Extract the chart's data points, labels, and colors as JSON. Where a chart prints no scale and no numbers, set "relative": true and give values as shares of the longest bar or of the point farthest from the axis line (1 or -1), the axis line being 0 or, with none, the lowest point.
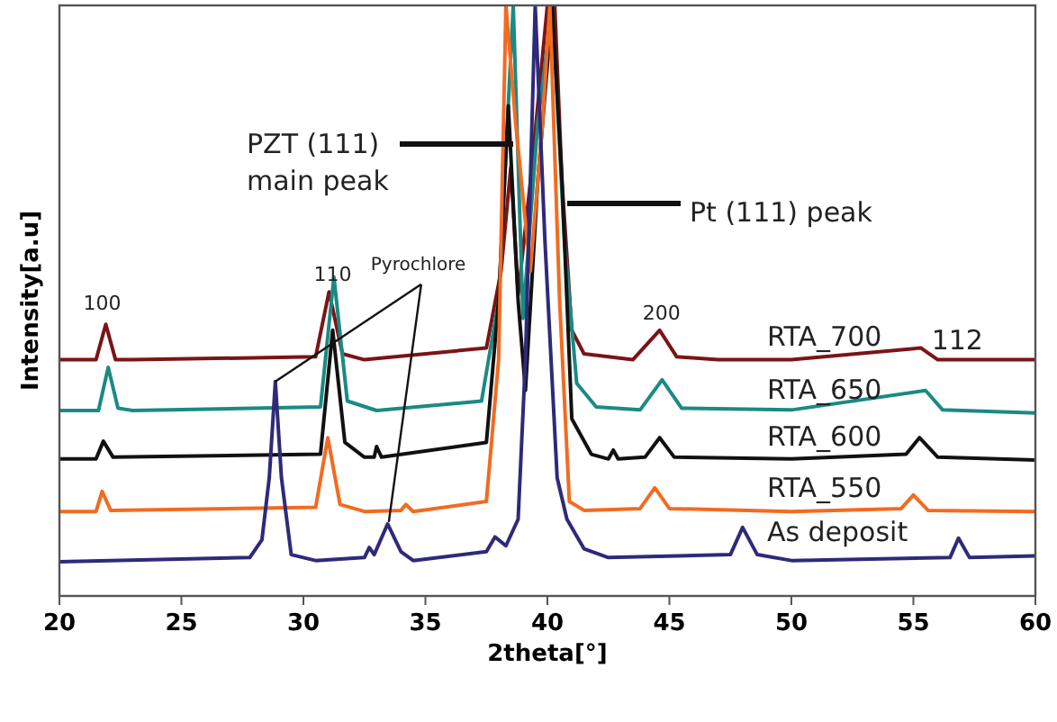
{
  "chart_data": {
    "type": "line",
    "relative": true,
    "xlabel": "2theta[°]",
    "ylabel": "Intensity[a.u]",
    "xlim": [
      20,
      60
    ],
    "xticks": [
      20,
      25,
      30,
      35,
      40,
      45,
      50,
      55,
      60
    ],
    "legend": false,
    "grid": false,
    "marker": "none",
    "line_style": "solid",
    "series": [
      {
        "name": "RTA_700",
        "color": "#7b1416",
        "x": [
          20,
          21.5,
          21.9,
          22.3,
          23,
          30.5,
          31.05,
          31.6,
          32.5,
          37.5,
          38.1,
          38.5,
          38.8,
          39.3,
          40.0,
          40.3,
          40.6,
          41,
          41.5,
          43.5,
          44.6,
          45.3,
          47,
          50,
          55.3,
          56,
          60
        ],
        "values": [
          0.4,
          0.4,
          0.46,
          0.4,
          0.4,
          0.405,
          0.515,
          0.41,
          0.4,
          0.42,
          0.55,
          0.726,
          0.51,
          0.7,
          1,
          1,
          0.7,
          0.45,
          0.41,
          0.4,
          0.45,
          0.405,
          0.4,
          0.4,
          0.42,
          0.4,
          0.4
        ]
      },
      {
        "name": "RTA_650",
        "color": "#1a8a85",
        "x": [
          20,
          21.6,
          22.0,
          22.4,
          23,
          30.7,
          31.25,
          31.8,
          33,
          37.3,
          38.0,
          38.6,
          39.0,
          39.6,
          40.2,
          40.7,
          41.2,
          42,
          43.8,
          44.7,
          45.5,
          50,
          55.5,
          56.2,
          60
        ],
        "values": [
          0.314,
          0.314,
          0.387,
          0.318,
          0.314,
          0.32,
          0.54,
          0.33,
          0.314,
          0.33,
          0.5,
          1,
          0.47,
          0.8,
          1,
          0.6,
          0.36,
          0.32,
          0.315,
          0.366,
          0.318,
          0.315,
          0.348,
          0.315,
          0.31
        ]
      },
      {
        "name": "RTA_600",
        "color": "#111111",
        "x": [
          20,
          21.5,
          21.8,
          22.2,
          30.7,
          31.2,
          31.7,
          32.5,
          32.9,
          33.0,
          33.2,
          37.5,
          38.0,
          38.4,
          38.8,
          39.1,
          39.6,
          40.2,
          40.6,
          41.0,
          41.8,
          42.5,
          42.7,
          42.9,
          44.0,
          44.6,
          45.2,
          50,
          54.7,
          55.25,
          56,
          60
        ],
        "values": [
          0.232,
          0.232,
          0.262,
          0.235,
          0.24,
          0.45,
          0.26,
          0.235,
          0.235,
          0.253,
          0.235,
          0.26,
          0.5,
          0.83,
          0.5,
          0.348,
          0.7,
          1,
          0.7,
          0.3,
          0.24,
          0.232,
          0.247,
          0.232,
          0.235,
          0.268,
          0.235,
          0.232,
          0.24,
          0.268,
          0.235,
          0.23
        ]
      },
      {
        "name": "RTA_550",
        "color": "#f26b21",
        "x": [
          20,
          21.5,
          21.75,
          22.1,
          30.5,
          31.0,
          31.5,
          32.5,
          34.0,
          34.2,
          34.5,
          37.5,
          38.0,
          38.3,
          38.7,
          39.3,
          39.8,
          40.1,
          40.5,
          40.9,
          41.5,
          43.8,
          44.4,
          45,
          50,
          54.5,
          55.0,
          55.6,
          60
        ],
        "values": [
          0.143,
          0.143,
          0.177,
          0.145,
          0.15,
          0.268,
          0.155,
          0.143,
          0.145,
          0.155,
          0.143,
          0.16,
          0.4,
          1,
          0.8,
          0.55,
          0.8,
          1,
          0.5,
          0.16,
          0.145,
          0.148,
          0.183,
          0.148,
          0.143,
          0.148,
          0.171,
          0.145,
          0.143
        ]
      },
      {
        "name": "As deposit",
        "color": "#2e2a7a",
        "x": [
          20,
          27.8,
          28.3,
          28.6,
          28.85,
          29.1,
          29.5,
          30.5,
          32.5,
          32.7,
          32.9,
          33.45,
          34.0,
          34.5,
          37.5,
          37.85,
          38.3,
          38.8,
          39.1,
          39.5,
          39.9,
          40.4,
          40.8,
          41.5,
          42.5,
          47.5,
          48.0,
          48.6,
          50,
          56.5,
          56.85,
          57.3,
          60
        ],
        "values": [
          0.058,
          0.065,
          0.095,
          0.2,
          0.363,
          0.2,
          0.07,
          0.06,
          0.065,
          0.082,
          0.07,
          0.122,
          0.075,
          0.06,
          0.075,
          0.1,
          0.085,
          0.13,
          0.4,
          1,
          0.6,
          0.2,
          0.13,
          0.08,
          0.065,
          0.07,
          0.116,
          0.07,
          0.06,
          0.065,
          0.098,
          0.065,
          0.068
        ]
      }
    ],
    "annotations": [
      {
        "text": "100",
        "x": 21.9,
        "y": 0.46
      },
      {
        "text": "110",
        "x": 31.05,
        "y": 0.515
      },
      {
        "text": "Pyrochlore",
        "x": 28.85,
        "y": 0.363
      },
      "PZT (111)\nmain peak",
      "Pt (111) peak",
      {
        "text": "200",
        "x": 44.6,
        "y": 0.45
      },
      {
        "text": "112",
        "x": 55.3,
        "y": 0.42
      }
    ]
  }
}
